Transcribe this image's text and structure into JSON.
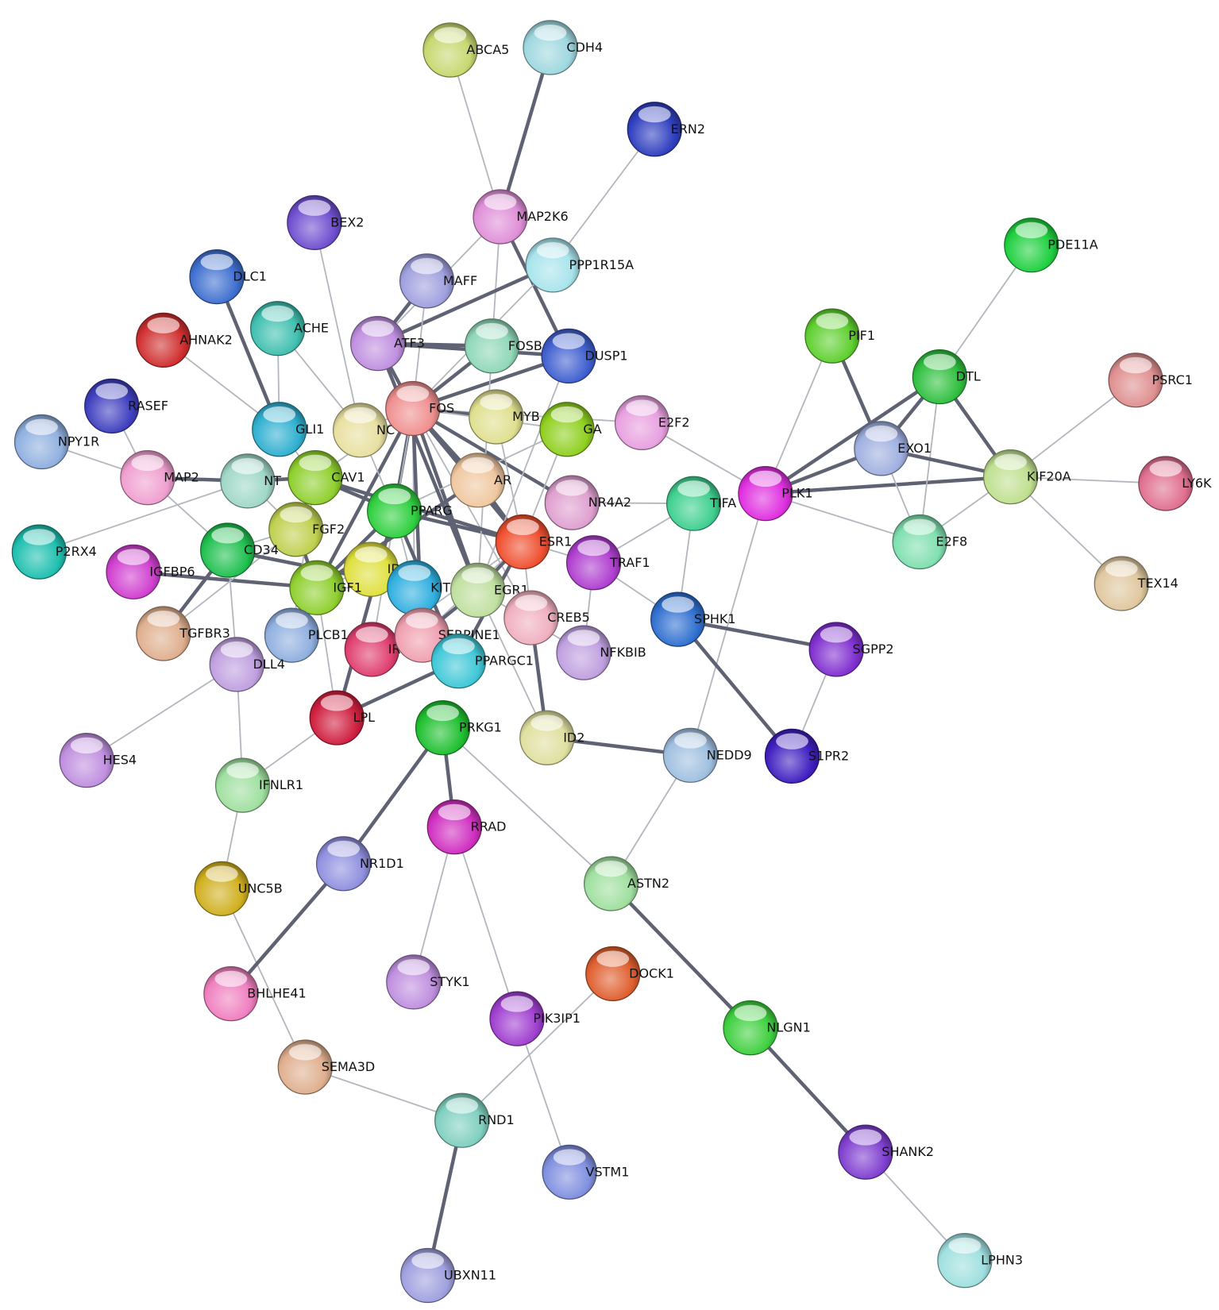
{
  "nodes": [
    {
      "id": "ABCA5",
      "label": "ABCA5",
      "color": "#c8d870"
    },
    {
      "id": "CDH4",
      "label": "CDH4",
      "color": "#9fd8e0"
    },
    {
      "id": "ERN2",
      "label": "ERN2",
      "color": "#3040c0"
    },
    {
      "id": "MAP2K6",
      "label": "MAP2K6",
      "color": "#e090d8"
    },
    {
      "id": "PPP1R15A",
      "label": "PPP1R15A",
      "color": "#a8e4ec"
    },
    {
      "id": "BEX2",
      "label": "BEX2",
      "color": "#7050d0"
    },
    {
      "id": "DLC1",
      "label": "DLC1",
      "color": "#4070d0"
    },
    {
      "id": "MAFF",
      "label": "MAFF",
      "color": "#a0a0e0"
    },
    {
      "id": "ACHE",
      "label": "ACHE",
      "color": "#40c0b0"
    },
    {
      "id": "AHNAK2",
      "label": "AHNAK2",
      "color": "#d03030"
    },
    {
      "id": "ATF3",
      "label": "ATF3",
      "color": "#c090e0"
    },
    {
      "id": "FOSB",
      "label": "FOSB",
      "color": "#90d8b8"
    },
    {
      "id": "DUSP1",
      "label": "DUSP1",
      "color": "#4060d0"
    },
    {
      "id": "PDE11A",
      "label": "PDE11A",
      "color": "#20d040"
    },
    {
      "id": "PIF1",
      "label": "PIF1",
      "color": "#60d030"
    },
    {
      "id": "DTL",
      "label": "DTL",
      "color": "#30c040"
    },
    {
      "id": "PSRC1",
      "label": "PSRC1",
      "color": "#e09090"
    },
    {
      "id": "RASEF",
      "label": "RASEF",
      "color": "#4040c0"
    },
    {
      "id": "NPY1R",
      "label": "NPY1R",
      "color": "#90b0e0"
    },
    {
      "id": "GLI1",
      "label": "GLI1",
      "color": "#30b0d0"
    },
    {
      "id": "NC",
      "label": "NC",
      "color": "#e8e0a0"
    },
    {
      "id": "FOS",
      "label": "FOS",
      "color": "#f09090"
    },
    {
      "id": "MYB",
      "label": "MYB",
      "color": "#e0e090"
    },
    {
      "id": "GA",
      "label": "GA",
      "color": "#90d020"
    },
    {
      "id": "E2F2",
      "label": "E2F2",
      "color": "#e8a0e0"
    },
    {
      "id": "EXO1",
      "label": "EXO1",
      "color": "#a0b0e0"
    },
    {
      "id": "KIF20A",
      "label": "KIF20A",
      "color": "#c0e090"
    },
    {
      "id": "LY6K",
      "label": "LY6K",
      "color": "#e07090"
    },
    {
      "id": "MAP2",
      "label": "MAP2",
      "color": "#f0a0d0"
    },
    {
      "id": "NT",
      "label": "NT",
      "color": "#a0d8c8"
    },
    {
      "id": "CAV1",
      "label": "CAV1",
      "color": "#90d030"
    },
    {
      "id": "AR",
      "label": "AR",
      "color": "#f0c8a0"
    },
    {
      "id": "NR4A2",
      "label": "NR4A2",
      "color": "#e0a0d0"
    },
    {
      "id": "PPARG",
      "label": "PPARG",
      "color": "#30d040"
    },
    {
      "id": "TIFA",
      "label": "TIFA",
      "color": "#40d090"
    },
    {
      "id": "PLK1",
      "label": "PLK1",
      "color": "#e030e0"
    },
    {
      "id": "E2F8",
      "label": "E2F8",
      "color": "#80e0b0"
    },
    {
      "id": "P2RX4",
      "label": "P2RX4",
      "color": "#20c0b0"
    },
    {
      "id": "FGF2",
      "label": "FGF2",
      "color": "#c0d050"
    },
    {
      "id": "CD34",
      "label": "CD34",
      "color": "#20c050"
    },
    {
      "id": "ESR1",
      "label": "ESR1",
      "color": "#f05030"
    },
    {
      "id": "TRAF1",
      "label": "TRAF1",
      "color": "#b040d0"
    },
    {
      "id": "IGFBP6",
      "label": "IGFBP6",
      "color": "#d040d0"
    },
    {
      "id": "ID",
      "label": "ID",
      "color": "#e0e040"
    },
    {
      "id": "KIT",
      "label": "KIT",
      "color": "#30b0e0"
    },
    {
      "id": "IGF1",
      "label": "IGF1",
      "color": "#90d030"
    },
    {
      "id": "EGR1",
      "label": "EGR1",
      "color": "#c0e0a0"
    },
    {
      "id": "CREB5",
      "label": "CREB5",
      "color": "#f0b0c0"
    },
    {
      "id": "TGFBR3",
      "label": "TGFBR3",
      "color": "#e0b090"
    },
    {
      "id": "PLCB1",
      "label": "PLCB1",
      "color": "#90b0e0"
    },
    {
      "id": "IRF7",
      "label": "IRF7",
      "color": "#e04070"
    },
    {
      "id": "SERPINE1",
      "label": "SERPINE1",
      "color": "#f0a0b0"
    },
    {
      "id": "PPARGC1",
      "label": "PPARGC1",
      "color": "#40c8d8"
    },
    {
      "id": "NFKBIB",
      "label": "NFKBIB",
      "color": "#c0a0e0"
    },
    {
      "id": "SPHK1",
      "label": "SPHK1",
      "color": "#3070d0"
    },
    {
      "id": "SGPP2",
      "label": "SGPP2",
      "color": "#8030d0"
    },
    {
      "id": "DLL4",
      "label": "DLL4",
      "color": "#c0a0e0"
    },
    {
      "id": "LPL",
      "label": "LPL",
      "color": "#d02040"
    },
    {
      "id": "PRKG1",
      "label": "PRKG1",
      "color": "#20c030"
    },
    {
      "id": "ID2",
      "label": "ID2",
      "color": "#e0e0a0"
    },
    {
      "id": "NEDD9",
      "label": "NEDD9",
      "color": "#a0c0e0"
    },
    {
      "id": "S1PR2",
      "label": "S1PR2",
      "color": "#4020c0"
    },
    {
      "id": "HES4",
      "label": "HES4",
      "color": "#c090e0"
    },
    {
      "id": "IFNLR1",
      "label": "IFNLR1",
      "color": "#a0e0a0"
    },
    {
      "id": "RRAD",
      "label": "RRAD",
      "color": "#d030c0"
    },
    {
      "id": "NR1D1",
      "label": "NR1D1",
      "color": "#9090e0"
    },
    {
      "id": "ASTN2",
      "label": "ASTN2",
      "color": "#a0e0a0"
    },
    {
      "id": "UNC5B",
      "label": "UNC5B",
      "color": "#d0b020"
    },
    {
      "id": "DOCK1",
      "label": "DOCK1",
      "color": "#e06030"
    },
    {
      "id": "STYK1",
      "label": "STYK1",
      "color": "#c090e0"
    },
    {
      "id": "BHLHE41",
      "label": "BHLHE41",
      "color": "#f080c0"
    },
    {
      "id": "PIK3IP1",
      "label": "PIK3IP1",
      "color": "#a040d0"
    },
    {
      "id": "NLGN1",
      "label": "NLGN1",
      "color": "#40d040"
    },
    {
      "id": "SEMA3D",
      "label": "SEMA3D",
      "color": "#e0b090"
    },
    {
      "id": "RND1",
      "label": "RND1",
      "color": "#80d0c0"
    },
    {
      "id": "SHANK2",
      "label": "SHANK2",
      "color": "#8040d0"
    },
    {
      "id": "VSTM1",
      "label": "VSTM1",
      "color": "#8090e0"
    },
    {
      "id": "LPHN3",
      "label": "LPHN3",
      "color": "#a0e0e0"
    },
    {
      "id": "UBXN11",
      "label": "UBXN11",
      "color": "#a0a0e0"
    },
    {
      "id": "TEX14",
      "label": "TEX14",
      "color": "#e0c8a0"
    }
  ],
  "edges": [
    [
      "ABCA5",
      "MAP2K6",
      "weak"
    ],
    [
      "CDH4",
      "MAP2K6",
      "strong"
    ],
    [
      "ERN2",
      "PPP1R15A",
      "weak"
    ],
    [
      "MAP2K6",
      "DUSP1",
      "strong"
    ],
    [
      "MAP2K6",
      "FOSB",
      "weak"
    ],
    [
      "MAP2K6",
      "ATF3",
      "weak"
    ],
    [
      "PPP1R15A",
      "ATF3",
      "strong"
    ],
    [
      "PPP1R15A",
      "FOS",
      "weak"
    ],
    [
      "BEX2",
      "NC",
      "weak"
    ],
    [
      "DLC1",
      "GLI1",
      "strong"
    ],
    [
      "AHNAK2",
      "GLI1",
      "weak"
    ],
    [
      "RASEF",
      "MAP2",
      "weak"
    ],
    [
      "NPY1R",
      "MAP2",
      "weak"
    ],
    [
      "MAP2",
      "NT",
      "strong"
    ],
    [
      "MAP2",
      "CD34",
      "weak"
    ],
    [
      "P2RX4",
      "NT",
      "weak"
    ],
    [
      "IGFBP6",
      "IGF1",
      "strong"
    ],
    [
      "TGFBR3",
      "CD34",
      "strong"
    ],
    [
      "TGFBR3",
      "FGF2",
      "weak"
    ],
    [
      "HES4",
      "DLL4",
      "weak"
    ],
    [
      "DLL4",
      "IFNLR1",
      "weak"
    ],
    [
      "IFNLR1",
      "UNC5B",
      "weak"
    ],
    [
      "IFNLR1",
      "LPL",
      "weak"
    ],
    [
      "UNC5B",
      "SEMA3D",
      "weak"
    ],
    [
      "SEMA3D",
      "RND1",
      "weak"
    ],
    [
      "RND1",
      "UBXN11",
      "strong"
    ],
    [
      "RND1",
      "DOCK1",
      "weak"
    ],
    [
      "NR1D1",
      "BHLHE41",
      "strong"
    ],
    [
      "NR1D1",
      "PRKG1",
      "strong"
    ],
    [
      "PRKG1",
      "RRAD",
      "strong"
    ],
    [
      "RRAD",
      "STYK1",
      "weak"
    ],
    [
      "RRAD",
      "PIK3IP1",
      "weak"
    ],
    [
      "PIK3IP1",
      "VSTM1",
      "weak"
    ],
    [
      "PRKG1",
      "ASTN2",
      "weak"
    ],
    [
      "ASTN2",
      "NLGN1",
      "strong"
    ],
    [
      "ASTN2",
      "NEDD9",
      "weak"
    ],
    [
      "NLGN1",
      "SHANK2",
      "strong"
    ],
    [
      "SHANK2",
      "LPHN3",
      "weak"
    ],
    [
      "ID2",
      "NEDD9",
      "strong"
    ],
    [
      "ID2",
      "CREB5",
      "strong"
    ],
    [
      "ID2",
      "EGR1",
      "weak"
    ],
    [
      "NEDD9",
      "PLK1",
      "weak"
    ],
    [
      "SPHK1",
      "SGPP2",
      "strong"
    ],
    [
      "SPHK1",
      "S1PR2",
      "strong"
    ],
    [
      "SGPP2",
      "S1PR2",
      "weak"
    ],
    [
      "SPHK1",
      "TIFA",
      "weak"
    ],
    [
      "SPHK1",
      "TRAF1",
      "weak"
    ],
    [
      "TIFA",
      "TRAF1",
      "weak"
    ],
    [
      "TIFA",
      "NR4A2",
      "weak"
    ],
    [
      "E2F2",
      "PLK1",
      "weak"
    ],
    [
      "E2F2",
      "FOS",
      "weak"
    ],
    [
      "PLK1",
      "PIF1",
      "weak"
    ],
    [
      "PLK1",
      "EXO1",
      "strong"
    ],
    [
      "PLK1",
      "DTL",
      "strong"
    ],
    [
      "PLK1",
      "KIF20A",
      "strong"
    ],
    [
      "PLK1",
      "E2F8",
      "weak"
    ],
    [
      "PIF1",
      "EXO1",
      "strong"
    ],
    [
      "DTL",
      "EXO1",
      "strong"
    ],
    [
      "DTL",
      "KIF20A",
      "strong"
    ],
    [
      "DTL",
      "E2F8",
      "weak"
    ],
    [
      "EXO1",
      "KIF20A",
      "strong"
    ],
    [
      "EXO1",
      "E2F8",
      "weak"
    ],
    [
      "KIF20A",
      "E2F8",
      "weak"
    ],
    [
      "KIF20A",
      "PSRC1",
      "weak"
    ],
    [
      "KIF20A",
      "LY6K",
      "weak"
    ],
    [
      "KIF20A",
      "TEX14",
      "weak"
    ],
    [
      "PDE11A",
      "DTL",
      "weak"
    ],
    [
      "MAFF",
      "ATF3",
      "strong"
    ],
    [
      "MAFF",
      "FOS",
      "weak"
    ],
    [
      "ACHE",
      "NC",
      "weak"
    ],
    [
      "ACHE",
      "GLI1",
      "weak"
    ],
    [
      "LPL",
      "PPARG",
      "strong"
    ],
    [
      "LPL",
      "PPARGC1",
      "strong"
    ],
    [
      "LPL",
      "IGF1",
      "weak"
    ],
    [
      "PLCB1",
      "IGF1",
      "weak"
    ],
    [
      "NFKBIB",
      "TRAF1",
      "weak"
    ],
    [
      "NFKBIB",
      "EGR1",
      "weak"
    ],
    [
      "FOS",
      "ATF3",
      "strong"
    ],
    [
      "FOS",
      "FOSB",
      "strong"
    ],
    [
      "FOS",
      "DUSP1",
      "strong"
    ],
    [
      "FOS",
      "MYB",
      "strong"
    ],
    [
      "FOS",
      "GA",
      "weak"
    ],
    [
      "FOS",
      "AR",
      "strong"
    ],
    [
      "FOS",
      "NR4A2",
      "strong"
    ],
    [
      "FOS",
      "PPARG",
      "strong"
    ],
    [
      "FOS",
      "ESR1",
      "strong"
    ],
    [
      "FOS",
      "EGR1",
      "strong"
    ],
    [
      "FOS",
      "CAV1",
      "weak"
    ],
    [
      "FOS",
      "NC",
      "weak"
    ],
    [
      "FOS",
      "IGF1",
      "strong"
    ],
    [
      "FOS",
      "KIT",
      "weak"
    ],
    [
      "FOS",
      "SERPINE1",
      "strong"
    ],
    [
      "FOS",
      "CREB5",
      "weak"
    ],
    [
      "FOS",
      "IRF7",
      "weak"
    ],
    [
      "EGR1",
      "ESR1",
      "strong"
    ],
    [
      "PPARG",
      "ESR1",
      "strong"
    ],
    [
      "AR",
      "ESR1",
      "strong"
    ],
    [
      "CAV1",
      "PPARG",
      "strong"
    ],
    [
      "CAV1",
      "FGF2",
      "weak"
    ],
    [
      "FGF2",
      "IGF1",
      "strong"
    ],
    [
      "IGF1",
      "PPARG",
      "strong"
    ],
    [
      "IGF1",
      "KIT",
      "weak"
    ],
    [
      "KIT",
      "PPARG",
      "weak"
    ],
    [
      "CD34",
      "KIT",
      "strong"
    ],
    [
      "CD34",
      "FGF2",
      "weak"
    ],
    [
      "NT",
      "FGF2",
      "weak"
    ],
    [
      "NT",
      "CAV1",
      "strong"
    ],
    [
      "GLI1",
      "CAV1",
      "weak"
    ],
    [
      "PPARG",
      "PPARGC1",
      "strong"
    ],
    [
      "ESR1",
      "PPARGC1",
      "strong"
    ],
    [
      "DUSP1",
      "ATF3",
      "strong"
    ],
    [
      "FOSB",
      "ATF3",
      "strong"
    ],
    [
      "FOSB",
      "EGR1",
      "weak"
    ],
    [
      "MYB",
      "ESR1",
      "weak"
    ],
    [
      "ID",
      "IGF1",
      "weak"
    ],
    [
      "ID",
      "KIT",
      "weak"
    ],
    [
      "AR",
      "IGF1",
      "strong"
    ],
    [
      "SERPINE1",
      "ESR1",
      "weak"
    ],
    [
      "SERPINE1",
      "EGR1",
      "strong"
    ],
    [
      "CAV1",
      "ESR1",
      "strong"
    ],
    [
      "PLCB1",
      "CAV1",
      "weak"
    ],
    [
      "DLL4",
      "CD34",
      "weak"
    ],
    [
      "TRAF1",
      "ESR1",
      "weak"
    ],
    [
      "CREB5",
      "ESR1",
      "weak"
    ],
    [
      "GA",
      "ESR1",
      "weak"
    ],
    [
      "GA",
      "PPARG",
      "weak"
    ],
    [
      "DUSP1",
      "EGR1",
      "weak"
    ],
    [
      "ATF3",
      "EGR1",
      "strong"
    ],
    [
      "NC",
      "PPARG",
      "weak"
    ],
    [
      "IRF7",
      "ESR1",
      "weak"
    ]
  ]
}
